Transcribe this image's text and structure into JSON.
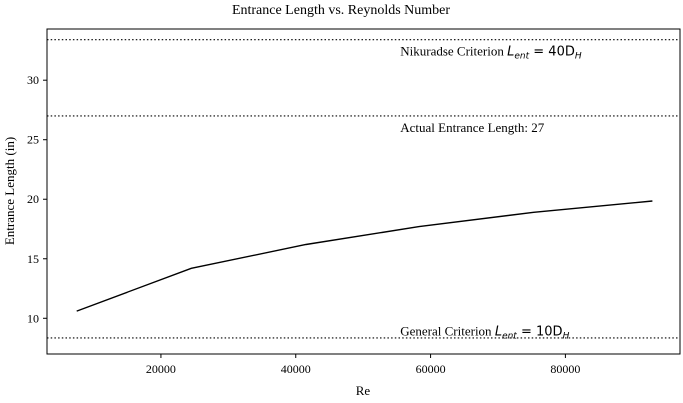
{
  "chart_data": {
    "type": "line",
    "title": "Entrance Length vs. Reynolds Number",
    "xlabel": "Re",
    "ylabel": "Entrance Length (in)",
    "xlim": [
      3100,
      97000
    ],
    "ylim": [
      7.0,
      34.3
    ],
    "x_ticks": [
      20000,
      40000,
      60000,
      80000
    ],
    "y_ticks": [
      10,
      15,
      20,
      25,
      30
    ],
    "grid": false,
    "series": [
      {
        "x": [
          7500,
          24500,
          41500,
          58300,
          75300,
          92900
        ],
        "y": [
          10.6,
          14.2,
          16.2,
          17.7,
          18.9,
          19.85
        ],
        "color": "#000000"
      }
    ],
    "reference_lines": [
      {
        "y": 33.4,
        "style": "dotted",
        "label_text": "Nikuradse Criterion ",
        "label_math": "L",
        "label_sub": "ent",
        "label_rest": " = 40D",
        "label_sub2": "H",
        "label_x": 55500,
        "label_y": 32.4
      },
      {
        "y": 27.0,
        "style": "dotted",
        "label_text": "Actual Entrance Length: 27",
        "label_x": 55500,
        "label_y": 26.0
      },
      {
        "y": 8.35,
        "style": "dotted",
        "label_text": "General Criterion ",
        "label_math": "L",
        "label_sub": "ent",
        "label_rest": " = 10D",
        "label_sub2": "H",
        "label_x": 55500,
        "label_y": 8.9
      }
    ]
  }
}
